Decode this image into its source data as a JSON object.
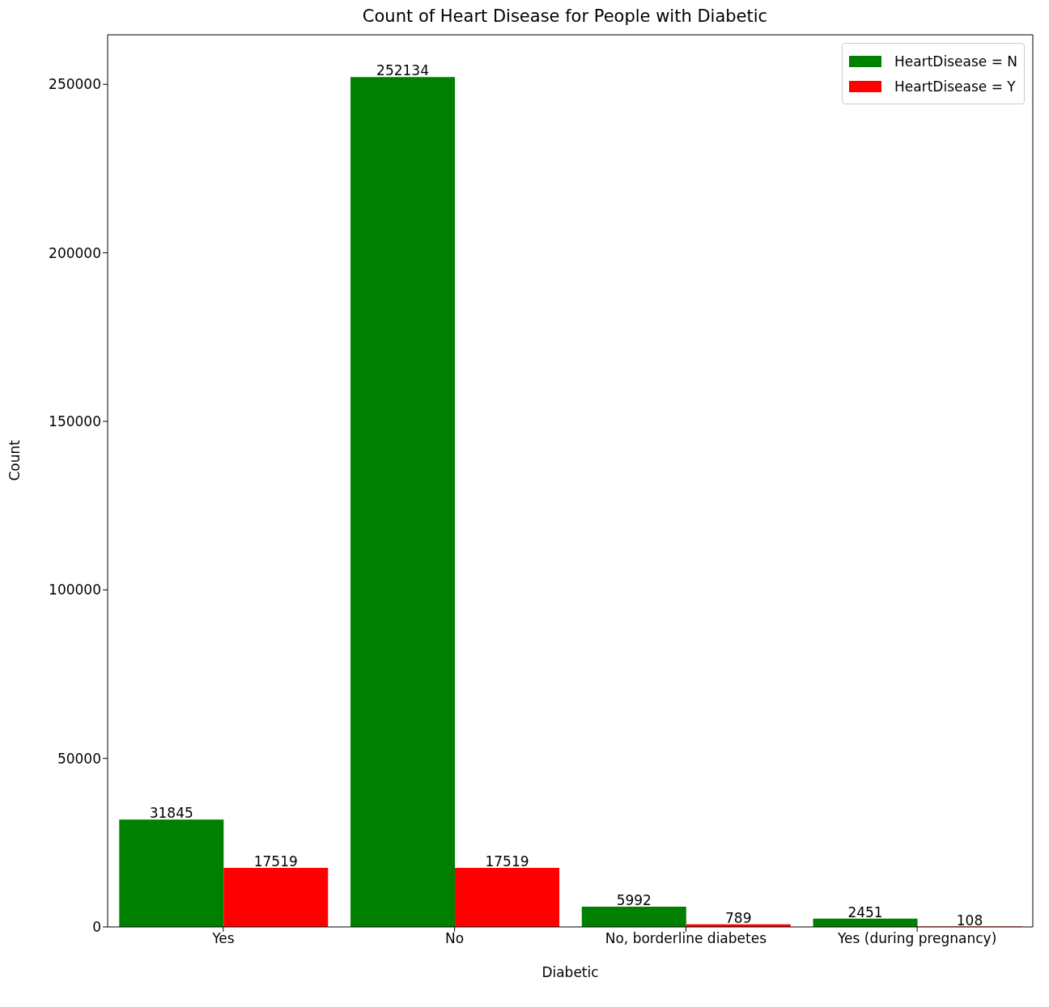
{
  "chart_data": {
    "type": "bar",
    "title": "Count of Heart Disease for People with Diabetic",
    "xlabel": "Diabetic",
    "ylabel": "Count",
    "categories": [
      "Yes",
      "No",
      "No, borderline diabetes",
      "Yes (during pregnancy)"
    ],
    "series": [
      {
        "name": "HeartDisease = N",
        "color": "#008000",
        "values": [
          31845,
          252134,
          5992,
          2451
        ]
      },
      {
        "name": "HeartDisease = Y",
        "color": "#ff0000",
        "values": [
          17519,
          17519,
          789,
          108
        ]
      }
    ],
    "ylim": [
      0,
      264700
    ],
    "yticks": [
      0,
      50000,
      100000,
      150000,
      200000,
      250000
    ],
    "data_labels": true,
    "legend": "top right",
    "grid": false
  }
}
